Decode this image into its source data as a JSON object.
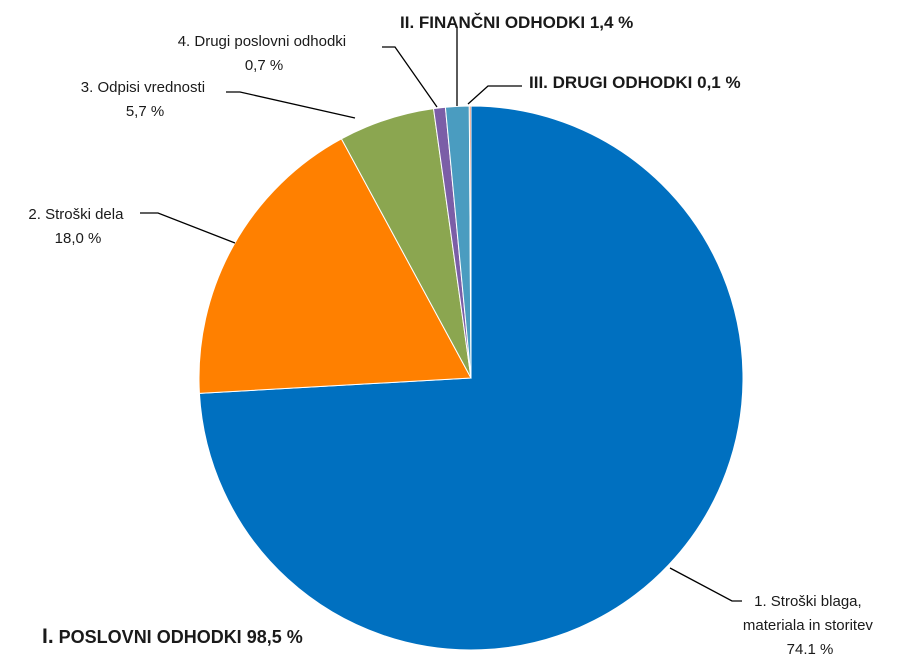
{
  "chart_data": {
    "type": "pie",
    "start_angle_deg": 0,
    "direction": "clockwise",
    "slices": [
      {
        "label_lines": [
          "1. Stroški blaga,",
          "materiala in storitev",
          "74.1 %"
        ],
        "value": 74.1,
        "color": "#0070C0"
      },
      {
        "label_lines": [
          "2. Stroški dela",
          "18,0 %"
        ],
        "value": 18.0,
        "color": "#FF8000"
      },
      {
        "label_lines": [
          "3. Odpisi vrednosti",
          "5,7 %"
        ],
        "value": 5.7,
        "color": "#8BA650"
      },
      {
        "label_lines": [
          "4. Drugi poslovni odhodki",
          "0,7 %"
        ],
        "value": 0.7,
        "color": "#7B5EA7"
      },
      {
        "label_lines": [
          "II. FINANČNI ODHODKI 1,4 %"
        ],
        "value": 1.4,
        "color": "#4A9CC0"
      },
      {
        "label_lines": [
          "III. DRUGI ODHODKI 0,1 %"
        ],
        "value": 0.1,
        "color": "#E0724A"
      }
    ],
    "group_annotation": {
      "prefix": "I.",
      "text": " POSLOVNI ODHODKI 98,5 %"
    }
  }
}
